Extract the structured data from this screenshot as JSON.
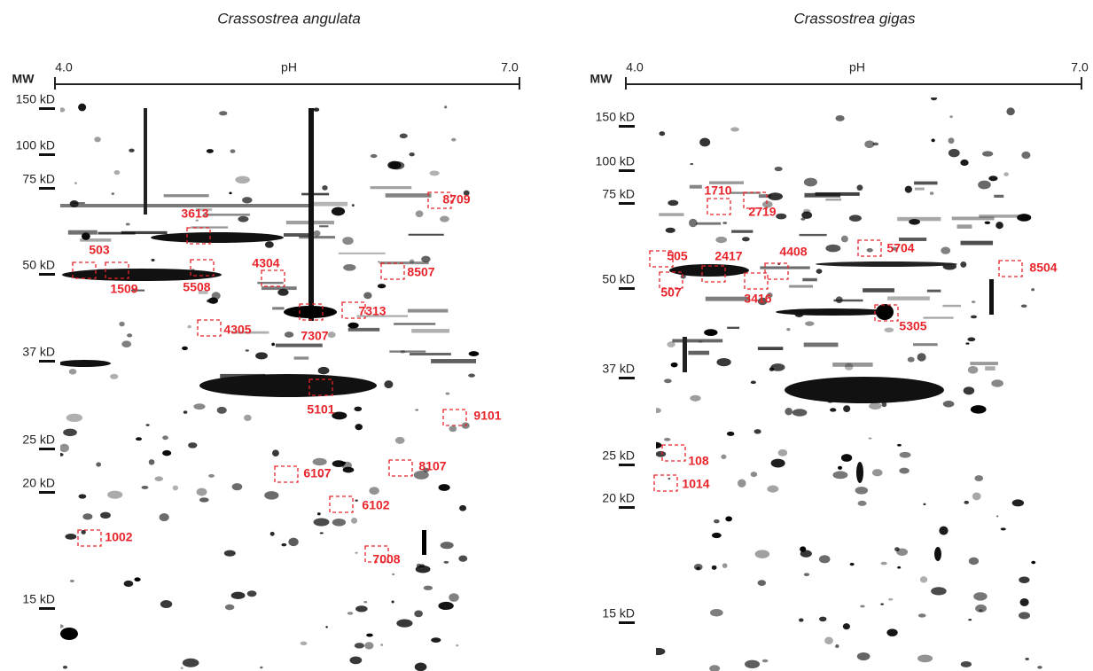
{
  "panels": [
    {
      "title": "Crassostrea angulata",
      "mw_label": "MW",
      "ph_label": "pH",
      "ph_start": "4.0",
      "ph_end": "7.0",
      "mw_markers": [
        "150 kD",
        "100 kD",
        "75 kD",
        "50 kD",
        "37 kD",
        "25 kD",
        "20 kD",
        "15 kD"
      ],
      "spots": [
        "8709",
        "3613",
        "503",
        "1509",
        "5508",
        "4304",
        "8507",
        "7313",
        "7307",
        "4305",
        "5101",
        "9101",
        "6107",
        "8107",
        "6102",
        "1002",
        "7008"
      ]
    },
    {
      "title": "Crassostrea gigas",
      "mw_label": "MW",
      "ph_label": "pH",
      "ph_start": "4.0",
      "ph_end": "7.0",
      "mw_markers": [
        "150 kD",
        "100 kD",
        "75 kD",
        "50 kD",
        "37 kD",
        "25 kD",
        "20 kD",
        "15 kD"
      ],
      "spots": [
        "1710",
        "2719",
        "505",
        "2417",
        "4408",
        "5704",
        "8504",
        "507",
        "3416",
        "5305",
        "108",
        "1014"
      ]
    }
  ]
}
